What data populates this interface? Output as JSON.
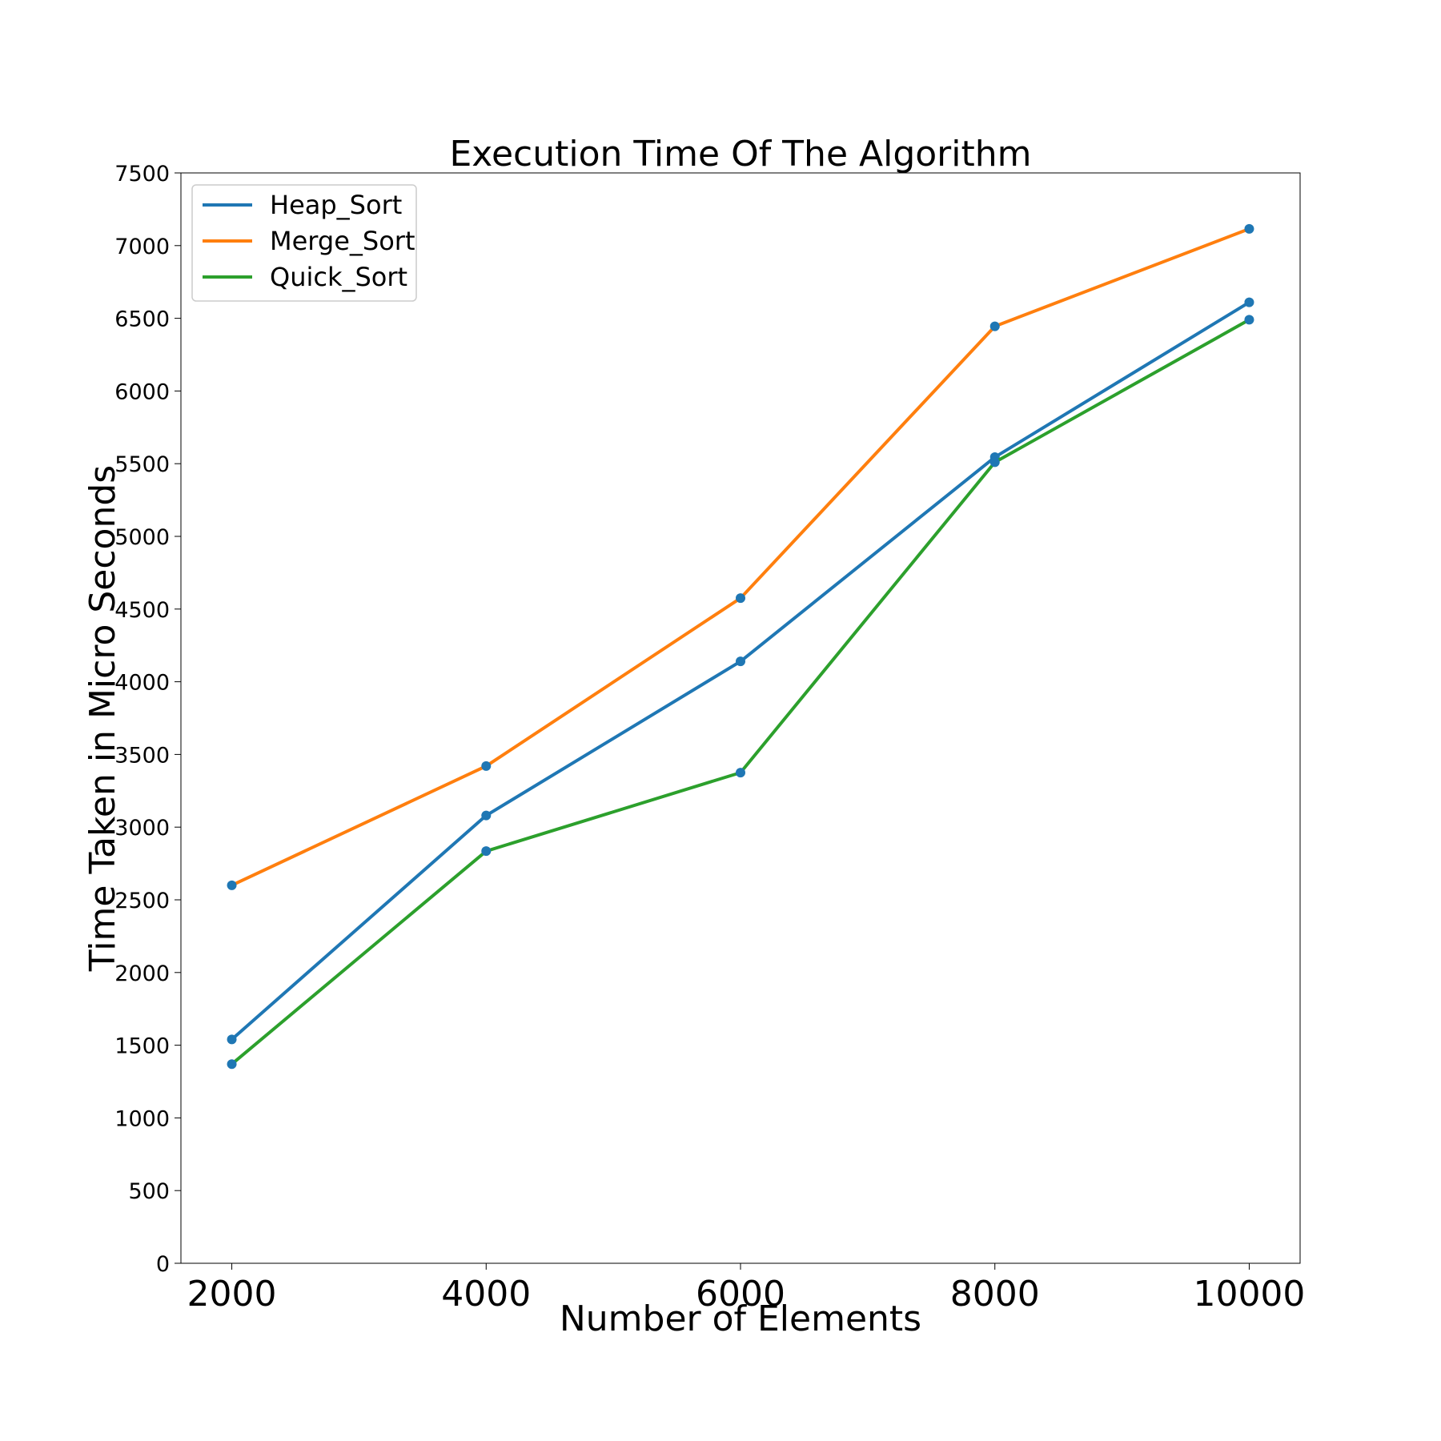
{
  "chart_data": {
    "type": "line",
    "title": "Execution Time Of The Algorithm",
    "xlabel": "Number of Elements",
    "ylabel": "Time Taken in Micro Seconds",
    "x": [
      2000,
      4000,
      6000,
      8000,
      10000
    ],
    "x_ticks": [
      "2000",
      "4000",
      "6000",
      "8000",
      "10000"
    ],
    "y_ticks": [
      "0",
      "500",
      "1000",
      "1500",
      "2000",
      "2500",
      "3000",
      "3500",
      "4000",
      "4500",
      "5000",
      "5500",
      "6000",
      "6500",
      "7000",
      "7500"
    ],
    "xlim": [
      1600,
      10400
    ],
    "ylim": [
      0,
      7500
    ],
    "grid": false,
    "legend_position": "top-left",
    "marker_color": "#1f77b4",
    "series": [
      {
        "name": "Heap_Sort",
        "color": "#1f77b4",
        "values": [
          1540,
          3080,
          4140,
          5545,
          6610
        ]
      },
      {
        "name": "Merge_Sort",
        "color": "#ff7f0e",
        "values": [
          2600,
          3420,
          4575,
          6445,
          7115
        ]
      },
      {
        "name": "Quick_Sort",
        "color": "#2ca02c",
        "values": [
          1370,
          2835,
          3375,
          5510,
          6490
        ]
      }
    ]
  }
}
